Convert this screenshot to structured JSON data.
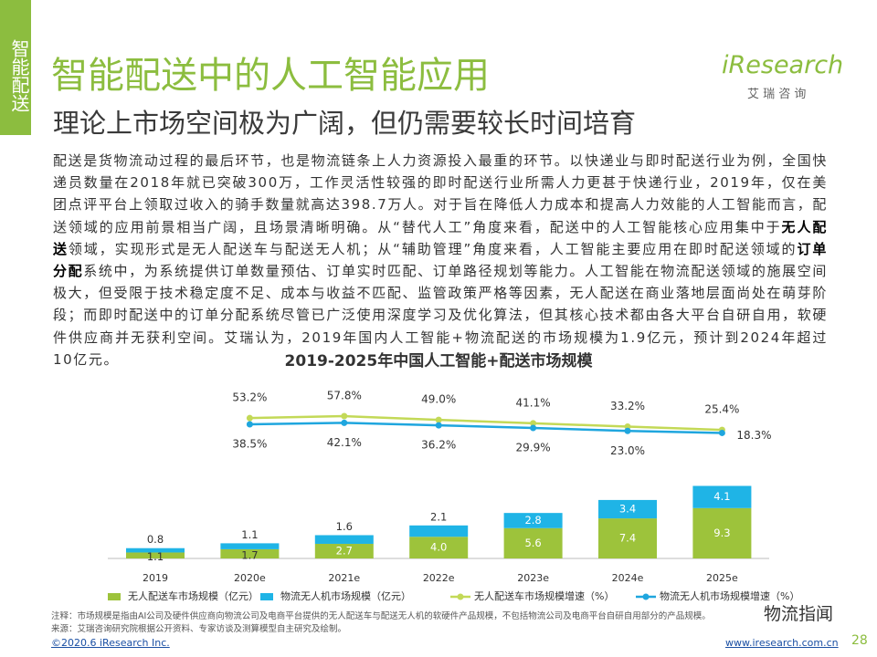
{
  "side_label": "智能配送",
  "header": {
    "title": "智能配送中的人工智能应用",
    "subtitle": "理论上市场空间极为广阔，但仍需要较长时间培育",
    "logo": "iResearch",
    "logo_sub": "艾 瑞 咨 询"
  },
  "body": [
    {
      "text": "配送是货物流动过程的最后环节，也是物流链条上人力资源投入最重的环节。以快递业与即时配送行业为例，全国快递员数量在2018年就已突破300万，工作灵活性较强的即时配送行业所需人力更甚于快递行业，2019年，仅在美团点评平台上领取过收入的骑手数量就高达398.7万人。对于旨在降低人力成本和提高人力效能的人工智能而言，配送领域的应用前景相当广阔，且场景清晰明确。从“替代人工”角度来看，配送中的人工智能核心应用集中于",
      "bold": false
    },
    {
      "text": "无人配送",
      "bold": true
    },
    {
      "text": "领域，实现形式是无人配送车与配送无人机；从“辅助管理”角度来看，人工智能主要应用在即时配送领域的",
      "bold": false
    },
    {
      "text": "订单分配",
      "bold": true
    },
    {
      "text": "系统中，为系统提供订单数量预估、订单实时匹配、订单路径规划等能力。人工智能在物流配送领域的施展空间极大，但受限于技术稳定度不足、成本与收益不匹配、监管政策严格等因素，无人配送在商业落地层面尚处在萌芽阶段；而即时配送中的订单分配系统尽管已广泛使用深度学习及优化算法，但其核心技术都由各大平台自研自用，软硬件供应商并无获利空间。艾瑞认为，2019年国内人工智能+物流配送的市场规模为1.9亿元，预计到2024年超过10亿元。",
      "bold": false
    }
  ],
  "chart_data": {
    "type": "bar",
    "stacked": true,
    "title": "2019-2025年中国人工智能+配送市场规模",
    "categories": [
      "2019",
      "2020e",
      "2021e",
      "2022e",
      "2023e",
      "2024e",
      "2025e"
    ],
    "ylim": [
      0,
      15
    ],
    "y2lim": [
      0,
      150
    ],
    "series": [
      {
        "name": "无人配送车市场规模（亿元）",
        "type": "bar",
        "color": "#9dc33b",
        "values": [
          1.1,
          1.7,
          2.7,
          4.0,
          5.6,
          7.4,
          9.3
        ],
        "value_labels": [
          "1.1",
          "1.7",
          "2.7",
          "4.0",
          "5.6",
          "7.4",
          "9.3"
        ]
      },
      {
        "name": "物流无人机市场规模（亿元）",
        "type": "bar",
        "color": "#1fb4e6",
        "values": [
          0.8,
          1.1,
          1.6,
          2.1,
          2.8,
          3.4,
          4.1
        ],
        "value_labels": [
          "0.8",
          "1.1",
          "1.6",
          "2.1",
          "2.8",
          "3.4",
          "4.1"
        ]
      },
      {
        "name": "无人配送车市场规模增速（%）",
        "type": "line",
        "axis": "y2",
        "color": "#c3d957",
        "values": [
          null,
          53.2,
          57.8,
          49.0,
          41.1,
          33.2,
          25.4
        ],
        "value_labels": [
          null,
          "53.2%",
          "57.8%",
          "49.0%",
          "41.1%",
          "33.2%",
          "25.4%"
        ]
      },
      {
        "name": "物流无人机市场规模增速（%）",
        "type": "line",
        "axis": "y2",
        "color": "#1fa6de",
        "values": [
          null,
          38.5,
          42.1,
          36.2,
          29.9,
          23.0,
          18.3
        ],
        "value_labels": [
          null,
          "38.5%",
          "42.1%",
          "36.2%",
          "29.9%",
          "23.0%",
          "18.3%"
        ]
      }
    ]
  },
  "notes": {
    "note": "注释：市场规模是指由AI公司及硬件供应商向物流公司及电商平台提供的无人配送车与配送无人机的软硬件产品规模，不包括物流公司及电商平台自研自用部分的产品规模。",
    "source": "来源：艾瑞咨询研究院根据公开资料、专家访谈及测算模型自主研究及绘制。"
  },
  "watermark": "物流指闻",
  "footer": {
    "copyright": "©2020.6 iResearch Inc.",
    "url": "www.iresearch.com.cn",
    "page": "28"
  }
}
